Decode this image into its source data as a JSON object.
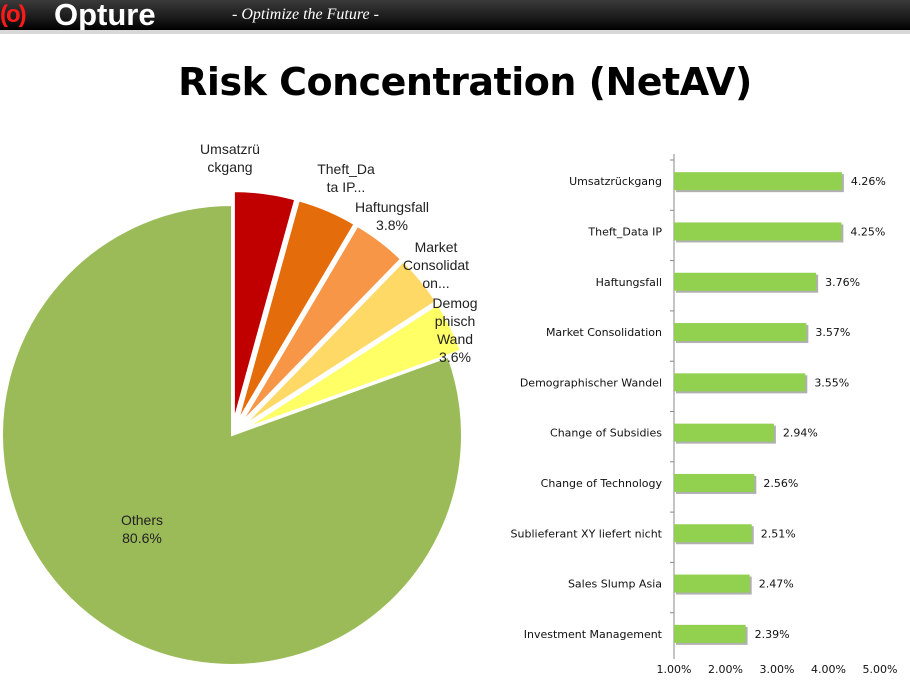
{
  "header": {
    "logo_mark": "(o)",
    "logo_text": "Opture",
    "tagline": "- Optimize the Future -"
  },
  "page": {
    "title": "Risk Concentration (NetAV)"
  },
  "colors": {
    "header_bg": "#111111",
    "bar_fill": "#92d050",
    "pie_others": "#9bbb59",
    "pie_slices": [
      "#c00000",
      "#e46c0a",
      "#f79646",
      "#ffd966",
      "#ffff66"
    ]
  },
  "chart_data": [
    {
      "type": "pie",
      "title": "",
      "exploded": true,
      "labels": [
        [
          "Umsatzrü",
          "ckgang"
        ],
        [
          "Theft_Da",
          "ta IP..."
        ],
        [
          "Haftungsfall",
          "3.8%"
        ],
        [
          "Market",
          "Consolidat",
          "on..."
        ],
        [
          "Demog",
          "phisch",
          "Wand",
          "3.6%"
        ],
        [
          "Others",
          "80.6%"
        ]
      ],
      "values": [
        4.3,
        4.2,
        3.8,
        3.6,
        3.6,
        80.6
      ],
      "colors": [
        "#c00000",
        "#e46c0a",
        "#f79646",
        "#ffd966",
        "#ffff66",
        "#9bbb59"
      ]
    },
    {
      "type": "bar",
      "orientation": "horizontal",
      "title": "",
      "categories": [
        "Umsatzrückgang",
        "Theft_Data IP",
        "Haftungsfall",
        "Market Consolidation",
        "Demographischer Wandel",
        "Change of Subsidies",
        "Change of Technology",
        "Sublieferant XY liefert nicht",
        "Sales Slump Asia",
        "Investment Management"
      ],
      "values": [
        4.26,
        4.25,
        3.76,
        3.57,
        3.55,
        2.94,
        2.56,
        2.51,
        2.47,
        2.39
      ],
      "value_labels": [
        "4.26%",
        "4.25%",
        "3.76%",
        "3.57%",
        "3.55%",
        "2.94%",
        "2.56%",
        "2.51%",
        "2.47%",
        "2.39%"
      ],
      "xlim": [
        1.0,
        5.0
      ],
      "xticks": [
        "1.00%",
        "2.00%",
        "3.00%",
        "4.00%",
        "5.00%"
      ],
      "grid": false,
      "legend": "none",
      "bar_color": "#92d050"
    }
  ]
}
